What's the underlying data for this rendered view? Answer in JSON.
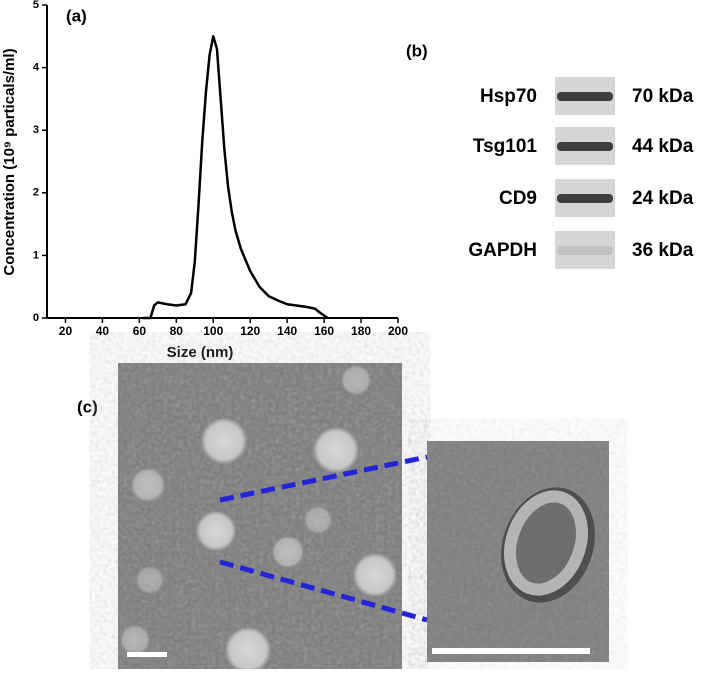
{
  "chart_data": {
    "type": "line",
    "panel_label": "(a)",
    "x_label": "Size (nm)",
    "y_label": "Concentration (10⁹ particals/ml)",
    "x": [
      62,
      66,
      68,
      70,
      75,
      80,
      85,
      88,
      90,
      92,
      94,
      96,
      98,
      100,
      102,
      104,
      106,
      108,
      110,
      112,
      115,
      120,
      125,
      130,
      135,
      140,
      145,
      150,
      155,
      158,
      162
    ],
    "values": [
      0,
      0,
      0.2,
      0.25,
      0.22,
      0.2,
      0.22,
      0.4,
      0.9,
      1.8,
      2.8,
      3.6,
      4.2,
      4.5,
      4.3,
      3.5,
      2.7,
      2.1,
      1.7,
      1.4,
      1.1,
      0.75,
      0.5,
      0.35,
      0.28,
      0.22,
      0.2,
      0.18,
      0.15,
      0.08,
      0
    ],
    "color": "#000000",
    "xlim": [
      10,
      200
    ],
    "xticks": [
      20,
      40,
      60,
      80,
      100,
      120,
      140,
      160,
      180,
      200
    ],
    "ylim": [
      0,
      5
    ],
    "yticks": [
      0,
      1,
      2,
      3,
      4,
      5
    ]
  },
  "blot": {
    "panel_label": "(b)",
    "rows": [
      {
        "protein": "Hsp70",
        "size": "70 kDa"
      },
      {
        "protein": "Tsg101",
        "size": "44 kDa"
      },
      {
        "protein": "CD9",
        "size": "24 kDa"
      },
      {
        "protein": "GAPDH",
        "size": "36 kDa"
      }
    ]
  },
  "tem": {
    "panel_label": "(c)"
  }
}
